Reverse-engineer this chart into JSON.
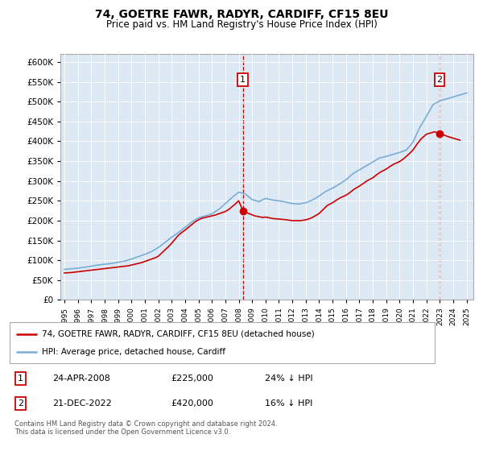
{
  "title": "74, GOETRE FAWR, RADYR, CARDIFF, CF15 8EU",
  "subtitle": "Price paid vs. HM Land Registry's House Price Index (HPI)",
  "legend_line1": "74, GOETRE FAWR, RADYR, CARDIFF, CF15 8EU (detached house)",
  "legend_line2": "HPI: Average price, detached house, Cardiff",
  "annotation1_date": "24-APR-2008",
  "annotation1_price": "£225,000",
  "annotation1_hpi": "24% ↓ HPI",
  "annotation2_date": "21-DEC-2022",
  "annotation2_price": "£420,000",
  "annotation2_hpi": "16% ↓ HPI",
  "footer": "Contains HM Land Registry data © Crown copyright and database right 2024.\nThis data is licensed under the Open Government Licence v3.0.",
  "hpi_color": "#7aadd4",
  "price_color": "#cc0000",
  "plot_bg": "#dce9f5",
  "grid_color": "#ffffff",
  "ylim": [
    0,
    620000
  ],
  "yticks": [
    0,
    50000,
    100000,
    150000,
    200000,
    250000,
    300000,
    350000,
    400000,
    450000,
    500000,
    550000,
    600000
  ],
  "sale1_x": 2008.31,
  "sale1_y": 225000,
  "sale2_x": 2022.97,
  "sale2_y": 420000,
  "xmin": 1994.7,
  "xmax": 2025.5,
  "hpi_years": [
    1995,
    1995.5,
    1996,
    1996.5,
    1997,
    1997.5,
    1998,
    1998.5,
    1999,
    1999.5,
    2000,
    2000.5,
    2001,
    2001.5,
    2002,
    2002.5,
    2003,
    2003.5,
    2004,
    2004.5,
    2005,
    2005.5,
    2006,
    2006.5,
    2007,
    2007.5,
    2008,
    2008.5,
    2009,
    2009.5,
    2010,
    2010.5,
    2011,
    2011.5,
    2012,
    2012.5,
    2013,
    2013.5,
    2014,
    2014.5,
    2015,
    2015.5,
    2016,
    2016.5,
    2017,
    2017.5,
    2018,
    2018.5,
    2019,
    2019.5,
    2020,
    2020.5,
    2021,
    2021.5,
    2022,
    2022.5,
    2023,
    2023.5,
    2024,
    2024.5,
    2025
  ],
  "hpi_values": [
    77000,
    78500,
    80000,
    82500,
    85000,
    88000,
    90000,
    92000,
    95000,
    98000,
    103000,
    109000,
    115000,
    122000,
    132000,
    145000,
    158000,
    170000,
    183000,
    197000,
    207000,
    212000,
    217000,
    228000,
    243000,
    258000,
    272000,
    267000,
    253000,
    248000,
    256000,
    252000,
    250000,
    247000,
    243000,
    242000,
    245000,
    252000,
    262000,
    274000,
    282000,
    292000,
    303000,
    318000,
    328000,
    338000,
    348000,
    358000,
    362000,
    367000,
    372000,
    378000,
    398000,
    435000,
    463000,
    493000,
    502000,
    507000,
    512000,
    517000,
    522000
  ],
  "price_years": [
    1995.0,
    1995.25,
    1995.5,
    1995.75,
    1996.0,
    1996.25,
    1996.5,
    1996.75,
    1997.0,
    1997.25,
    1997.5,
    1997.75,
    1998.0,
    1998.25,
    1998.5,
    1998.75,
    1999.0,
    1999.25,
    1999.5,
    1999.75,
    2000.0,
    2000.25,
    2000.5,
    2000.75,
    2001.0,
    2001.25,
    2001.5,
    2001.75,
    2002.0,
    2002.25,
    2002.5,
    2002.75,
    2003.0,
    2003.25,
    2003.5,
    2003.75,
    2004.0,
    2004.25,
    2004.5,
    2004.75,
    2005.0,
    2005.25,
    2005.5,
    2005.75,
    2006.0,
    2006.25,
    2006.5,
    2006.75,
    2007.0,
    2007.25,
    2007.5,
    2007.75,
    2008.0,
    2008.31,
    2008.6,
    2008.9,
    2009.2,
    2009.5,
    2009.8,
    2010.0,
    2010.3,
    2010.6,
    2011.0,
    2011.3,
    2011.6,
    2012.0,
    2012.3,
    2012.6,
    2013.0,
    2013.3,
    2013.6,
    2014.0,
    2014.3,
    2014.6,
    2015.0,
    2015.3,
    2015.6,
    2016.0,
    2016.3,
    2016.6,
    2017.0,
    2017.3,
    2017.6,
    2018.0,
    2018.3,
    2018.6,
    2019.0,
    2019.3,
    2019.6,
    2020.0,
    2020.3,
    2020.6,
    2021.0,
    2021.3,
    2021.6,
    2022.0,
    2022.3,
    2022.6,
    2022.97,
    2023.3,
    2023.6,
    2024.0,
    2024.3,
    2024.5
  ],
  "price_values": [
    68000,
    68500,
    69000,
    70000,
    71000,
    72000,
    73000,
    74000,
    75000,
    76000,
    77000,
    78000,
    79000,
    80000,
    81000,
    82000,
    83000,
    84000,
    85000,
    86000,
    88000,
    90000,
    92000,
    94000,
    97000,
    100000,
    103000,
    106000,
    110000,
    118000,
    126000,
    134000,
    143000,
    153000,
    163000,
    170000,
    176000,
    183000,
    190000,
    197000,
    202000,
    206000,
    208000,
    210000,
    212000,
    214000,
    217000,
    220000,
    223000,
    228000,
    235000,
    242000,
    250000,
    225000,
    220000,
    216000,
    212000,
    210000,
    208000,
    209000,
    207000,
    205000,
    204000,
    203000,
    202000,
    200000,
    200000,
    200000,
    202000,
    205000,
    210000,
    218000,
    228000,
    238000,
    245000,
    252000,
    258000,
    264000,
    271000,
    279000,
    287000,
    294000,
    301000,
    308000,
    316000,
    323000,
    330000,
    337000,
    343000,
    349000,
    356000,
    365000,
    378000,
    393000,
    406000,
    418000,
    421000,
    424000,
    420000,
    416000,
    412000,
    408000,
    405000,
    403000
  ]
}
